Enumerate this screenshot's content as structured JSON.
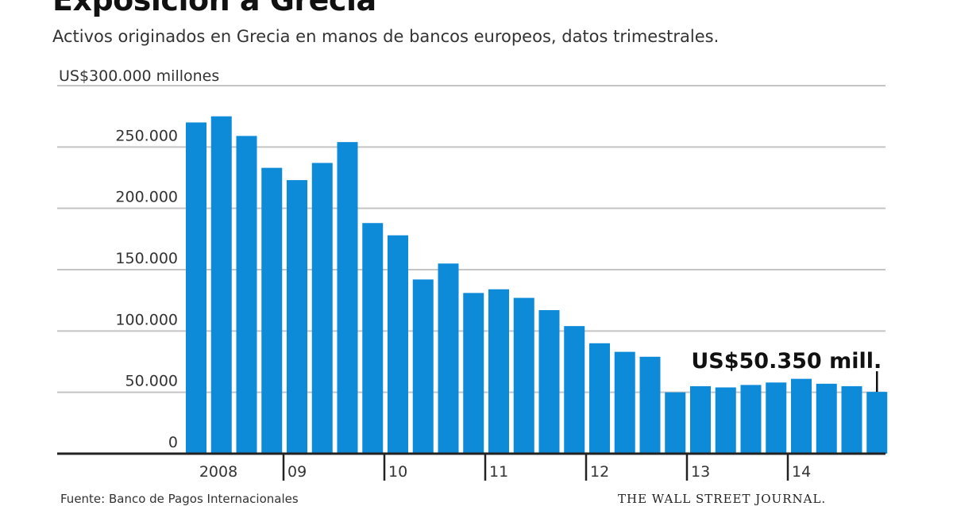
{
  "header": {
    "title": "Exposición a Grecia",
    "subtitle": "Activos originados en Grecia en manos de bancos europeos, datos trimestrales."
  },
  "footer": {
    "source": "Fuente: Banco de Pagos Internacionales",
    "credit": "THE WALL STREET JOURNAL."
  },
  "colors": {
    "bar": "#0d8bd9",
    "grid": "#c4c4c4",
    "axis": "#222222",
    "text": "#333333"
  },
  "chart_data": {
    "type": "bar",
    "title": "Exposición a Grecia",
    "subtitle": "Activos originados en Grecia en manos de bancos europeos, datos trimestrales.",
    "xlabel": "",
    "ylabel": "US$ millones",
    "unit_label": "US$300.000 millones",
    "ylim": [
      0,
      300000
    ],
    "yticks": [
      0,
      50000,
      100000,
      150000,
      200000,
      250000,
      300000
    ],
    "ytick_labels": [
      "0",
      "50.000",
      "100.000",
      "150.000",
      "200.000",
      "250.000",
      "US$300.000 millones"
    ],
    "grid": true,
    "year_labels": [
      "2008",
      "09",
      "10",
      "11",
      "12",
      "13",
      "14"
    ],
    "categories": [
      "2008 T1",
      "2008 T2",
      "2008 T3",
      "2008 T4",
      "2009 T1",
      "2009 T2",
      "2009 T3",
      "2009 T4",
      "2010 T1",
      "2010 T2",
      "2010 T3",
      "2010 T4",
      "2011 T1",
      "2011 T2",
      "2011 T3",
      "2011 T4",
      "2012 T1",
      "2012 T2",
      "2012 T3",
      "2012 T4",
      "2013 T1",
      "2013 T2",
      "2013 T3",
      "2013 T4",
      "2014 T1",
      "2014 T2",
      "2014 T3",
      "2014 T4"
    ],
    "values": [
      270000,
      275000,
      259000,
      233000,
      223000,
      237000,
      254000,
      188000,
      178000,
      142000,
      155000,
      131000,
      134000,
      127000,
      117000,
      104000,
      90000,
      83000,
      79000,
      50000,
      55000,
      54000,
      56000,
      58000,
      61000,
      57000,
      55000,
      50350
    ],
    "annotation": {
      "text": "US$50.350 mill.",
      "target_index": 27
    }
  }
}
